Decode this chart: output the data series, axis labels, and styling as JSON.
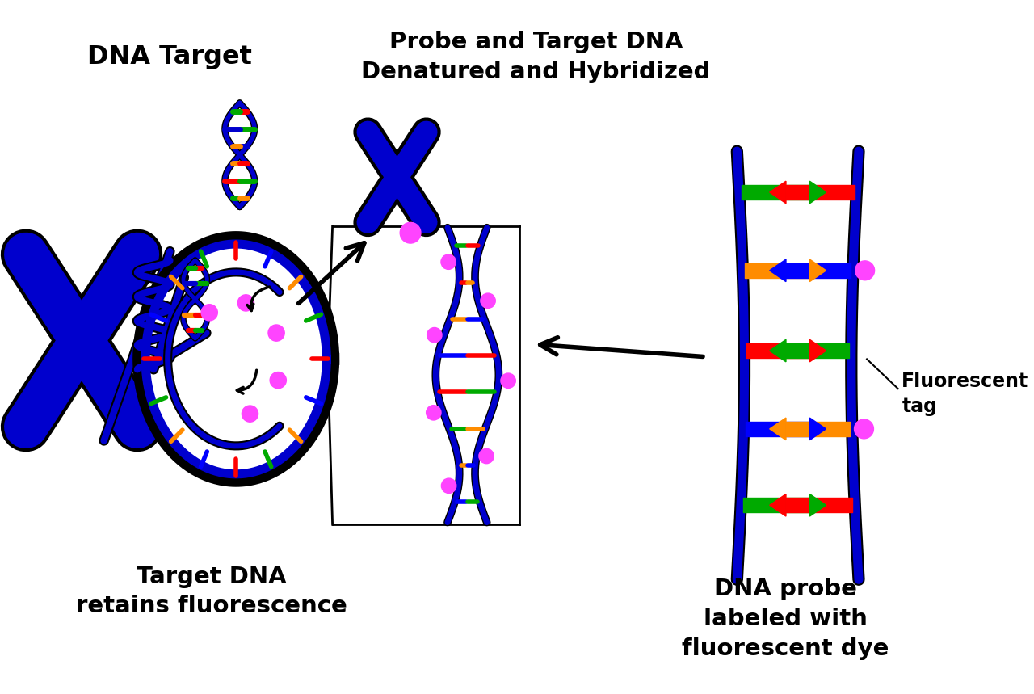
{
  "bg_color": "#ffffff",
  "blue": "#0000CD",
  "magenta": "#FF44FF",
  "red": "#FF0000",
  "green": "#00AA00",
  "orange": "#FF8C00",
  "blue_bar": "#0000FF",
  "label_dna_target": "DNA Target",
  "label_probe_denatured": "Probe and Target DNA\nDenatured and Hybridized",
  "label_target_retains": "Target DNA\nretains fluorescence",
  "label_dna_probe": "DNA probe\nlabeled with\nfluorescent dye",
  "label_fluor_tag": "Fluorescent\ntag"
}
